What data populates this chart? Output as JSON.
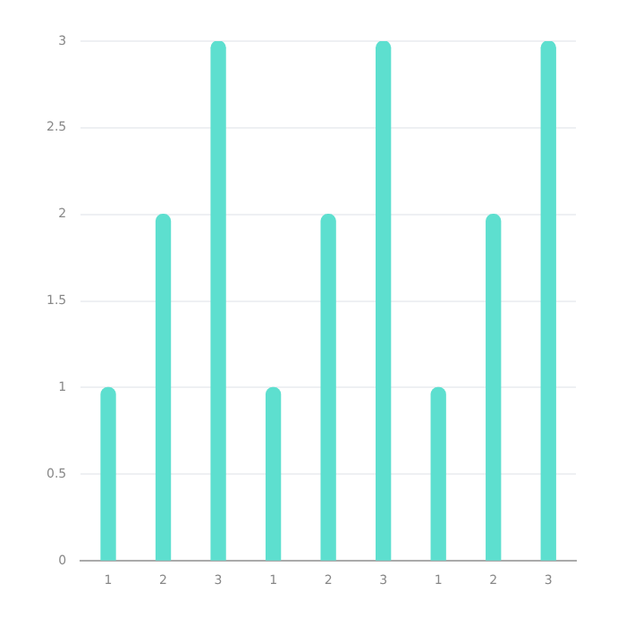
{
  "chart_data": {
    "type": "bar",
    "categories": [
      "1",
      "2",
      "3",
      "1",
      "2",
      "3",
      "1",
      "2",
      "3"
    ],
    "values": [
      1,
      2,
      3,
      1,
      2,
      3,
      1,
      2,
      3
    ],
    "color": "#5ddfcf",
    "ylim": [
      0,
      3
    ],
    "yticks": [
      0,
      0.5,
      1,
      1.5,
      2,
      2.5,
      3
    ],
    "grid": "y"
  }
}
